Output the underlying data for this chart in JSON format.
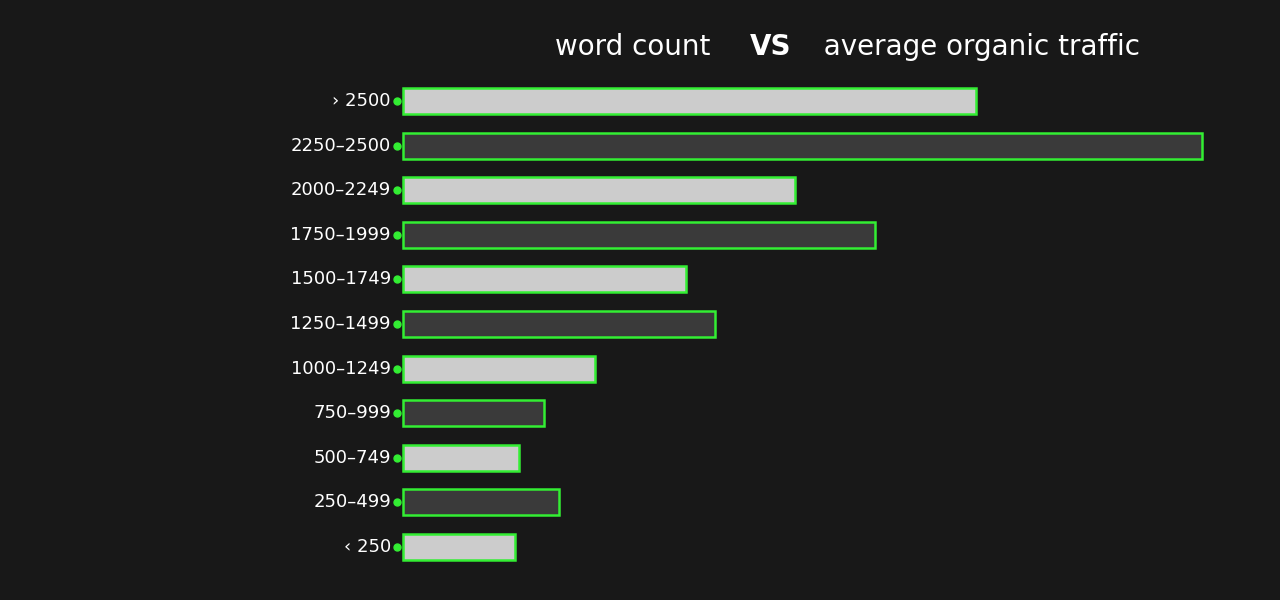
{
  "categories": [
    "› 2500",
    "2250–2500",
    "2000–2249",
    "1750–1999",
    "1500–1749",
    "1250–1499",
    "1000–1249",
    "750–999",
    "500–749",
    "250–499",
    "‹ 250"
  ],
  "values": [
    0.718,
    1.0,
    0.491,
    0.591,
    0.355,
    0.391,
    0.241,
    0.177,
    0.145,
    0.195,
    0.141
  ],
  "bar_colors": [
    "#cccccc",
    "#3a3a3a",
    "#cccccc",
    "#3a3a3a",
    "#cccccc",
    "#3a3a3a",
    "#cccccc",
    "#3a3a3a",
    "#cccccc",
    "#3a3a3a",
    "#cccccc"
  ],
  "border_color": "#33ee33",
  "background_color": "#181818",
  "text_color": "#ffffff",
  "dot_color": "#33ee33",
  "title_part1": "word count",
  "title_vs": "VS",
  "title_part2": "average organic traffic",
  "title_fontsize": 20,
  "label_fontsize": 13,
  "bar_height": 0.58
}
